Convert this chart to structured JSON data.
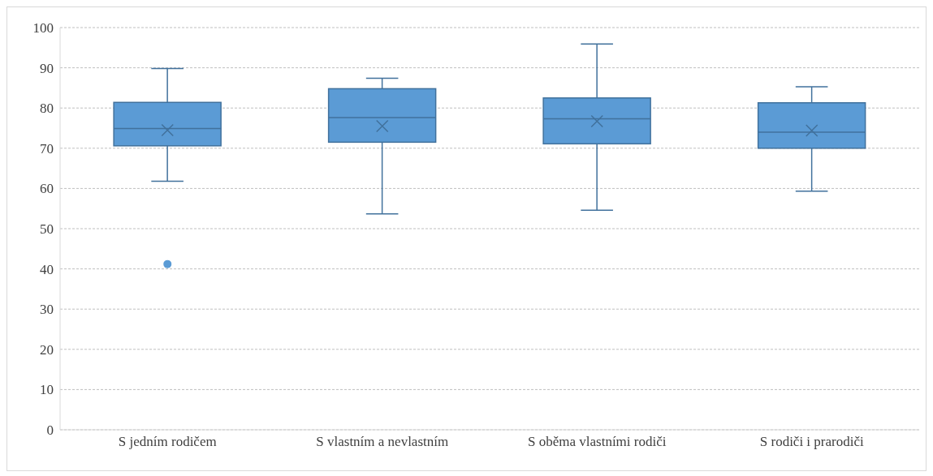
{
  "chart_data": {
    "type": "box",
    "categories": [
      "S  jedním rodičem",
      "S vlastním a nevlastním",
      "S oběma vlastními rodiči",
      "S rodiči i prarodiči"
    ],
    "boxes": [
      {
        "low": 61.8,
        "q1": 70.6,
        "median": 74.9,
        "q3": 81.4,
        "high": 89.8,
        "mean": 74.5,
        "outliers": [
          41.2
        ]
      },
      {
        "low": 53.7,
        "q1": 71.5,
        "median": 77.6,
        "q3": 84.8,
        "high": 87.4,
        "mean": 75.5
      },
      {
        "low": 54.6,
        "q1": 71.1,
        "median": 77.3,
        "q3": 82.5,
        "high": 95.9,
        "mean": 76.7
      },
      {
        "low": 59.3,
        "q1": 70.0,
        "median": 74.0,
        "q3": 81.3,
        "high": 85.3,
        "mean": 74.4
      }
    ],
    "color": "#5b9bd5",
    "ylim": [
      0,
      100
    ],
    "yticks": [
      0,
      10,
      20,
      30,
      40,
      50,
      60,
      70,
      80,
      90,
      100
    ],
    "grid": "y",
    "marker": "cross"
  }
}
